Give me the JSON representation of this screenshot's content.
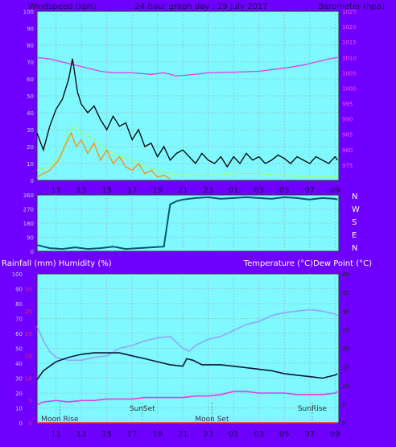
{
  "colors": {
    "background": "#6f00ff",
    "plot": "#7ff8ff",
    "grid": "#9bbcbc",
    "right_scale": "#ff4dff",
    "left_scale_bottom": "#ff2b2b"
  },
  "header": {
    "left": "Windspeed (kph)",
    "center": "24 hour graph day : 29 July 2017",
    "right": "Barometer (hpa)"
  },
  "wind_dir_labels": [
    "N",
    "W",
    "S",
    "E",
    "N"
  ],
  "lower_header": {
    "left": "Rainfall (mm)  Humidity (%)",
    "right": "Temperature (°C)Dew Point (°C)"
  },
  "annotations": [
    {
      "label": "Moon Rise",
      "x": 11.3
    },
    {
      "label": "SunSet",
      "x": 17.8
    },
    {
      "label": "Moon Set",
      "x": 23.3
    },
    {
      "label": "SunRise",
      "x": 31.2
    }
  ],
  "chart_data": [
    {
      "type": "line",
      "title": "24 hour graph day : 29 July 2017",
      "xlabel": "",
      "ylabel": "Windspeed (kph)",
      "y2label": "Barometer (hpa)",
      "xlim": [
        9.5,
        33.3
      ],
      "ylim": [
        0,
        100
      ],
      "y2lim": [
        970,
        1025
      ],
      "x_ticks": [
        "11",
        "13",
        "15",
        "17",
        "19",
        "21",
        "23",
        "01",
        "03",
        "05",
        "07",
        "09"
      ],
      "y_ticks": [
        0,
        10,
        20,
        30,
        40,
        50,
        60,
        70,
        80,
        90,
        100
      ],
      "y2_ticks": [
        975,
        980,
        985,
        990,
        995,
        1000,
        1005,
        1010,
        1015,
        1020,
        1025
      ],
      "grid": true,
      "series": [
        {
          "axis": "y2",
          "color": "#e040e0",
          "x": [
            9.5,
            10.5,
            11.5,
            12.5,
            13.5,
            14.5,
            15.5,
            17,
            18.5,
            19.5,
            20.5,
            21.5,
            23,
            25,
            27,
            29,
            30.5,
            31.5,
            32.5,
            33.2
          ],
          "values": [
            1010,
            1009.5,
            1008.5,
            1007.5,
            1006.5,
            1005.5,
            1005,
            1005,
            1004.5,
            1005,
            1004,
            1004.3,
            1005,
            1005.2,
            1005.5,
            1006.5,
            1007.5,
            1008.5,
            1009.5,
            1010
          ]
        },
        {
          "axis": "y",
          "color": "#000000",
          "x": [
            9.5,
            10,
            10.5,
            11,
            11.5,
            12,
            12.3,
            12.7,
            13,
            13.5,
            14,
            14.5,
            15,
            15.5,
            16,
            16.5,
            17,
            17.5,
            18,
            18.5,
            19,
            19.5,
            20,
            20.5,
            21,
            21.5,
            22,
            22.5,
            23,
            23.5,
            24,
            24.5,
            25,
            25.5,
            26,
            26.5,
            27,
            27.5,
            28,
            28.5,
            29,
            29.5,
            30,
            30.5,
            31,
            31.5,
            32,
            32.5,
            33,
            33.2
          ],
          "values": [
            28,
            18,
            32,
            42,
            48,
            60,
            72,
            52,
            45,
            40,
            44,
            36,
            30,
            38,
            32,
            34,
            24,
            30,
            20,
            22,
            14,
            20,
            12,
            16,
            18,
            14,
            10,
            16,
            12,
            10,
            14,
            8,
            14,
            10,
            16,
            12,
            14,
            10,
            12,
            15,
            13,
            10,
            14,
            12,
            10,
            14,
            12,
            10,
            14,
            12
          ]
        },
        {
          "axis": "y",
          "color": "#9dff7a",
          "x": [
            9.5,
            10.5,
            11.5,
            12,
            12.5,
            13,
            14,
            15,
            16,
            17,
            18,
            19,
            20,
            21,
            23,
            25,
            27,
            29,
            31,
            33.2
          ],
          "values": [
            6,
            8,
            16,
            28,
            32,
            28,
            24,
            18,
            14,
            12,
            8,
            6,
            4,
            3,
            3,
            4,
            4,
            3,
            2,
            2
          ]
        },
        {
          "axis": "y",
          "color": "#ff8c00",
          "x": [
            9.5,
            10.5,
            11.2,
            11.8,
            12.2,
            12.6,
            13,
            13.5,
            14,
            14.5,
            15,
            15.5,
            16,
            16.5,
            17,
            17.5,
            18,
            18.5,
            19,
            19.5,
            20
          ],
          "values": [
            2,
            6,
            12,
            22,
            28,
            20,
            24,
            16,
            22,
            12,
            18,
            10,
            14,
            8,
            6,
            10,
            4,
            6,
            2,
            3,
            1
          ]
        }
      ]
    },
    {
      "type": "scatter",
      "ylabel": "Wind direction",
      "xlim": [
        9.5,
        33.3
      ],
      "ylim": [
        0,
        360
      ],
      "y_ticks": [
        0,
        90,
        180,
        270,
        360
      ],
      "series": [
        {
          "color": "#00597a",
          "x": [
            9.5,
            10.5,
            11.5,
            12.5,
            13.5,
            14.5,
            15.5,
            16.5,
            17.5,
            18.5,
            19.5,
            20,
            20.5,
            21,
            22,
            23,
            24,
            25,
            26,
            27,
            28,
            29,
            30,
            31,
            32,
            33,
            33.2
          ],
          "values": [
            40,
            20,
            15,
            25,
            15,
            20,
            30,
            15,
            20,
            25,
            30,
            300,
            320,
            330,
            340,
            345,
            335,
            340,
            345,
            340,
            335,
            345,
            340,
            330,
            340,
            335,
            330
          ]
        }
      ]
    },
    {
      "type": "line",
      "ylabel": "Rainfall (mm)  Humidity (%)",
      "y2label": "Temperature (°C)Dew Point (°C)",
      "xlim": [
        9.5,
        33.3
      ],
      "ylim": [
        0,
        100
      ],
      "y2lim": [
        0,
        40
      ],
      "y_ticks": [
        0,
        10,
        20,
        30,
        40,
        50,
        60,
        70,
        80,
        90,
        100
      ],
      "y_ticks_inner": [
        0,
        5,
        10,
        15,
        20,
        25,
        30
      ],
      "y2_ticks": [
        0,
        5,
        10,
        15,
        20,
        25,
        30,
        35,
        40
      ],
      "grid": true,
      "series": [
        {
          "axis": "y",
          "color": "#8fa8ff",
          "x": [
            9.5,
            10,
            10.5,
            11,
            12,
            13,
            14,
            15,
            16,
            17,
            18,
            19,
            20,
            21,
            21.5,
            22,
            23,
            24,
            25,
            26,
            27,
            28,
            29,
            30,
            31,
            32,
            33,
            33.2
          ],
          "values": [
            65,
            55,
            48,
            44,
            42,
            42,
            44,
            45,
            50,
            52,
            55,
            57,
            58,
            50,
            48,
            52,
            56,
            58,
            62,
            66,
            68,
            72,
            74,
            75,
            76,
            75,
            73,
            72
          ]
        },
        {
          "axis": "y",
          "color": "#0a1a33",
          "x": [
            9.5,
            10,
            11,
            12,
            13,
            14,
            15,
            16,
            17,
            18,
            19,
            20,
            21,
            21.3,
            21.8,
            22.5,
            23,
            24,
            25,
            26,
            27,
            28,
            29,
            30,
            31,
            32,
            33,
            33.2
          ],
          "values": [
            29,
            35,
            41,
            44,
            46,
            47,
            47,
            47,
            45,
            43,
            41,
            39,
            38,
            43,
            42,
            39,
            39,
            39,
            38,
            37,
            36,
            35,
            33,
            32,
            31,
            30,
            32,
            33
          ]
        },
        {
          "axis": "y",
          "color": "#e040e0",
          "x": [
            9.5,
            10,
            11,
            12,
            13,
            14,
            15,
            16,
            17,
            18,
            19,
            20,
            21,
            22,
            23,
            24,
            25,
            26,
            27,
            28,
            29,
            30,
            31,
            32,
            33,
            33.2
          ],
          "values": [
            12,
            14,
            15,
            14,
            15,
            15,
            16,
            16,
            16,
            17,
            17,
            17,
            17,
            18,
            18,
            19,
            21,
            21,
            20,
            20,
            20,
            19,
            19,
            19,
            20,
            21
          ]
        },
        {
          "axis": "y",
          "color": "#ff2020",
          "x": [
            9.5,
            33.2
          ],
          "values": [
            0,
            0
          ]
        }
      ]
    }
  ]
}
